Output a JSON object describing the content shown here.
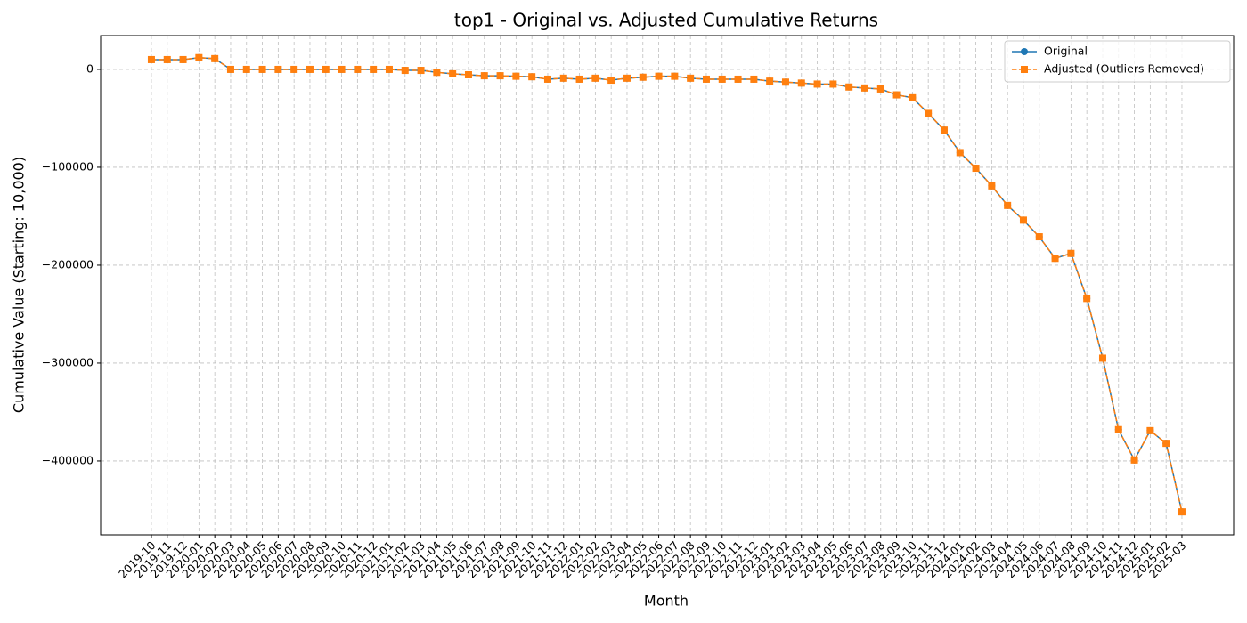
{
  "chart_data": {
    "type": "line",
    "title": "top1 - Original vs. Adjusted Cumulative Returns",
    "xlabel": "Month",
    "ylabel": "Cumulative Value (Starting: 10,000)",
    "categories": [
      "2019-10",
      "2019-11",
      "2019-12",
      "2020-01",
      "2020-02",
      "2020-03",
      "2020-04",
      "2020-05",
      "2020-06",
      "2020-07",
      "2020-08",
      "2020-09",
      "2020-10",
      "2020-11",
      "2020-12",
      "2021-01",
      "2021-02",
      "2021-03",
      "2021-04",
      "2021-05",
      "2021-06",
      "2021-07",
      "2021-08",
      "2021-09",
      "2021-10",
      "2021-11",
      "2021-12",
      "2022-01",
      "2022-02",
      "2022-03",
      "2022-04",
      "2022-05",
      "2022-06",
      "2022-07",
      "2022-08",
      "2022-09",
      "2022-10",
      "2022-11",
      "2022-12",
      "2023-01",
      "2023-02",
      "2023-03",
      "2023-04",
      "2023-05",
      "2023-06",
      "2023-07",
      "2023-08",
      "2023-09",
      "2023-10",
      "2023-11",
      "2023-12",
      "2024-01",
      "2024-02",
      "2024-03",
      "2024-04",
      "2024-05",
      "2024-06",
      "2024-07",
      "2024-08",
      "2024-09",
      "2024-10",
      "2024-11",
      "2024-12",
      "2025-01",
      "2025-02",
      "2025-03"
    ],
    "series": [
      {
        "name": "Original",
        "color": "#1f77b4",
        "marker": "circle",
        "linestyle": "solid",
        "values": [
          10000,
          10000,
          10000,
          12000,
          11000,
          0,
          0,
          0,
          0,
          0,
          0,
          0,
          0,
          0,
          0,
          0,
          -1000,
          -1000,
          -3000,
          -4500,
          -5500,
          -6500,
          -6500,
          -7000,
          -7500,
          -10000,
          -9000,
          -10000,
          -9000,
          -11000,
          -9000,
          -8000,
          -7000,
          -7000,
          -9000,
          -10000,
          -10000,
          -10000,
          -10000,
          -12000,
          -13000,
          -14000,
          -15000,
          -15000,
          -18000,
          -19000,
          -20000,
          -26000,
          -29000,
          -45000,
          -62000,
          -85000,
          -101000,
          -119000,
          -139000,
          -154000,
          -171000,
          -193000,
          -188000,
          -234000,
          -295000,
          -368000,
          -399000,
          -369000,
          -382000,
          -452000
        ]
      },
      {
        "name": "Adjusted (Outliers Removed)",
        "color": "#ff7f0e",
        "marker": "square",
        "linestyle": "dashed",
        "values": [
          10000,
          10000,
          10000,
          12000,
          11000,
          0,
          0,
          0,
          0,
          0,
          0,
          0,
          0,
          0,
          0,
          0,
          -1000,
          -1000,
          -3000,
          -4500,
          -5500,
          -6500,
          -6500,
          -7000,
          -7500,
          -10000,
          -9000,
          -10000,
          -9000,
          -11000,
          -9000,
          -8000,
          -7000,
          -7000,
          -9000,
          -10000,
          -10000,
          -10000,
          -10000,
          -12000,
          -13000,
          -14000,
          -15000,
          -15000,
          -18000,
          -19000,
          -20000,
          -26000,
          -29000,
          -45000,
          -62000,
          -85000,
          -101000,
          -119000,
          -139000,
          -154000,
          -171000,
          -193000,
          -188000,
          -234000,
          -295000,
          -368000,
          -399000,
          -369000,
          -382000,
          -452000
        ]
      }
    ],
    "ylim": [
      -475500,
      34500
    ],
    "yticks": [
      {
        "value": -400000,
        "label": "−400000"
      },
      {
        "value": -300000,
        "label": "−300000"
      },
      {
        "value": -200000,
        "label": "−200000"
      },
      {
        "value": -100000,
        "label": "−100000"
      },
      0
    ],
    "grid": true,
    "legend": "upper right"
  }
}
